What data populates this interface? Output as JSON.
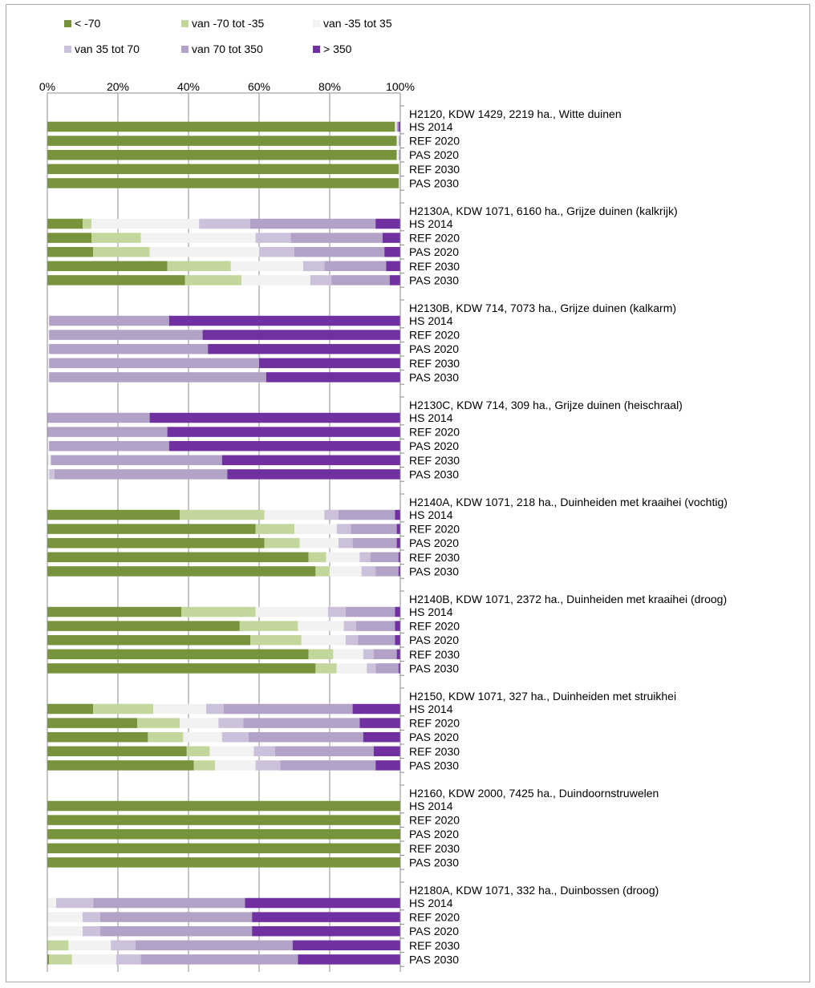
{
  "chart_data": {
    "type": "bar",
    "orientation": "horizontal",
    "stacked": "percent",
    "xlim": [
      0,
      100
    ],
    "x_ticks": [
      "0%",
      "20%",
      "40%",
      "60%",
      "80%",
      "100%"
    ],
    "grid": true,
    "legend_position": "top",
    "legend": [
      {
        "name": "< -70",
        "color": "#77933c"
      },
      {
        "name": "van -70 tot -35",
        "color": "#c3d69b"
      },
      {
        "name": "van -35 tot 35",
        "color": "#f2f2f2"
      },
      {
        "name": "van 35 tot 70",
        "color": "#ccc1da"
      },
      {
        "name": "van 70 tot 350",
        "color": "#b3a2c7"
      },
      {
        "name": "> 350",
        "color": "#7030a0"
      }
    ],
    "groups": [
      {
        "title": "H2120, KDW 1429, 2219 ha., Witte duinen",
        "bars": [
          {
            "label": "HS 2014",
            "values": [
              98.5,
              0,
              0.5,
              0,
              0.5,
              0.5
            ]
          },
          {
            "label": "REF 2020",
            "values": [
              99,
              0,
              0.6,
              0,
              0.4,
              0
            ]
          },
          {
            "label": "PAS 2020",
            "values": [
              99,
              0,
              0.6,
              0,
              0.4,
              0
            ]
          },
          {
            "label": "REF 2030",
            "values": [
              99.6,
              0,
              0.4,
              0,
              0,
              0
            ]
          },
          {
            "label": "PAS 2030",
            "values": [
              99.6,
              0,
              0.4,
              0,
              0,
              0
            ]
          }
        ]
      },
      {
        "title": "H2130A, KDW 1071, 6160 ha., Grijze duinen (kalkrijk)",
        "bars": [
          {
            "label": "HS 2014",
            "values": [
              10,
              2.5,
              30.5,
              14.5,
              35.5,
              7
            ]
          },
          {
            "label": "REF 2020",
            "values": [
              12.5,
              14,
              32.5,
              10,
              26,
              5
            ]
          },
          {
            "label": "PAS 2020",
            "values": [
              13,
              16,
              31,
              10,
              25.5,
              4.5
            ]
          },
          {
            "label": "REF 2030",
            "values": [
              34,
              18,
              20.5,
              6,
              17.5,
              4
            ]
          },
          {
            "label": "PAS 2030",
            "values": [
              39,
              16,
              19.5,
              6,
              16.5,
              3
            ]
          }
        ]
      },
      {
        "title": "H2130B, KDW 714, 7073 ha., Grijze duinen (kalkarm)",
        "bars": [
          {
            "label": "HS 2014",
            "values": [
              0,
              0,
              0.5,
              0,
              34,
              65.5
            ]
          },
          {
            "label": "REF 2020",
            "values": [
              0,
              0,
              0.5,
              0,
              43.5,
              56
            ]
          },
          {
            "label": "PAS 2020",
            "values": [
              0,
              0,
              0.5,
              0,
              45,
              54.5
            ]
          },
          {
            "label": "REF 2030",
            "values": [
              0,
              0,
              0.5,
              0,
              59.5,
              40
            ]
          },
          {
            "label": "PAS 2030",
            "values": [
              0,
              0,
              0.5,
              0,
              61.5,
              38
            ]
          }
        ]
      },
      {
        "title": "H2130C, KDW 714, 309 ha., Grijze duinen (heischraal)",
        "bars": [
          {
            "label": "HS 2014",
            "values": [
              0,
              0,
              0,
              0,
              29,
              71
            ]
          },
          {
            "label": "REF 2020",
            "values": [
              0,
              0,
              0,
              0,
              34,
              66
            ]
          },
          {
            "label": "PAS 2020",
            "values": [
              0,
              0,
              0.5,
              0,
              34,
              65.5
            ]
          },
          {
            "label": "REF 2030",
            "values": [
              0,
              0,
              1,
              0,
              48.5,
              50.5
            ]
          },
          {
            "label": "PAS 2030",
            "values": [
              0,
              0,
              0.5,
              1.5,
              49,
              49
            ]
          }
        ]
      },
      {
        "title": "H2140A, KDW 1071, 218 ha., Duinheiden met kraaihei (vochtig)",
        "bars": [
          {
            "label": "HS 2014",
            "values": [
              37.5,
              24,
              17,
              4,
              16,
              1.5
            ]
          },
          {
            "label": "REF 2020",
            "values": [
              59,
              11,
              12,
              4,
              13,
              1
            ]
          },
          {
            "label": "PAS 2020",
            "values": [
              61.5,
              10,
              11,
              4,
              12.5,
              1
            ]
          },
          {
            "label": "REF 2030",
            "values": [
              74,
              5,
              9.5,
              3,
              8,
              0.5
            ]
          },
          {
            "label": "PAS 2030",
            "values": [
              76,
              4,
              9,
              4,
              6.5,
              0.5
            ]
          }
        ]
      },
      {
        "title": "H2140B, KDW 1071, 2372 ha., Duinheiden met kraaihei (droog)",
        "bars": [
          {
            "label": "HS 2014",
            "values": [
              38,
              21,
              20.5,
              5,
              14,
              1.5
            ]
          },
          {
            "label": "REF 2020",
            "values": [
              54.5,
              16.5,
              13,
              3.5,
              11,
              1.5
            ]
          },
          {
            "label": "PAS 2020",
            "values": [
              57.5,
              14.5,
              12.5,
              3.5,
              10.5,
              1.5
            ]
          },
          {
            "label": "REF 2030",
            "values": [
              74,
              7,
              8.5,
              3,
              6.5,
              1
            ]
          },
          {
            "label": "PAS 2030",
            "values": [
              76,
              6,
              8.5,
              2.5,
              6.5,
              0.5
            ]
          }
        ]
      },
      {
        "title": "H2150, KDW 1071, 327 ha., Duinheiden met struikhei",
        "bars": [
          {
            "label": "HS 2014",
            "values": [
              13,
              17,
              15,
              5,
              36.5,
              13.5
            ]
          },
          {
            "label": "REF 2020",
            "values": [
              25.5,
              12,
              11,
              7,
              33,
              11.5
            ]
          },
          {
            "label": "PAS 2020",
            "values": [
              28.5,
              10,
              11,
              7.5,
              32.5,
              10.5
            ]
          },
          {
            "label": "REF 2030",
            "values": [
              39.5,
              6.5,
              12.5,
              6,
              28,
              7.5
            ]
          },
          {
            "label": "PAS 2030",
            "values": [
              41.5,
              6,
              11.5,
              7,
              27,
              7
            ]
          }
        ]
      },
      {
        "title": "H2160, KDW 2000, 7425 ha., Duindoornstruwelen",
        "bars": [
          {
            "label": "HS 2014",
            "values": [
              100,
              0,
              0,
              0,
              0,
              0
            ]
          },
          {
            "label": "REF 2020",
            "values": [
              100,
              0,
              0,
              0,
              0,
              0
            ]
          },
          {
            "label": "PAS 2020",
            "values": [
              100,
              0,
              0,
              0,
              0,
              0
            ]
          },
          {
            "label": "REF 2030",
            "values": [
              100,
              0,
              0,
              0,
              0,
              0
            ]
          },
          {
            "label": "PAS 2030",
            "values": [
              100,
              0,
              0,
              0,
              0,
              0
            ]
          }
        ]
      },
      {
        "title": "H2180A, KDW 1071, 332 ha., Duinbossen (droog)",
        "bars": [
          {
            "label": "HS 2014",
            "values": [
              0,
              0,
              2.5,
              10.5,
              43,
              44
            ]
          },
          {
            "label": "REF 2020",
            "values": [
              0,
              0,
              10,
              5,
              43,
              42
            ]
          },
          {
            "label": "PAS 2020",
            "values": [
              0,
              0,
              10,
              5,
              43,
              42
            ]
          },
          {
            "label": "REF 2030",
            "values": [
              0,
              6,
              12,
              7,
              44.5,
              30.5
            ]
          },
          {
            "label": "PAS 2030",
            "values": [
              0.5,
              6.5,
              12.5,
              7,
              44.5,
              29
            ]
          }
        ]
      }
    ]
  }
}
